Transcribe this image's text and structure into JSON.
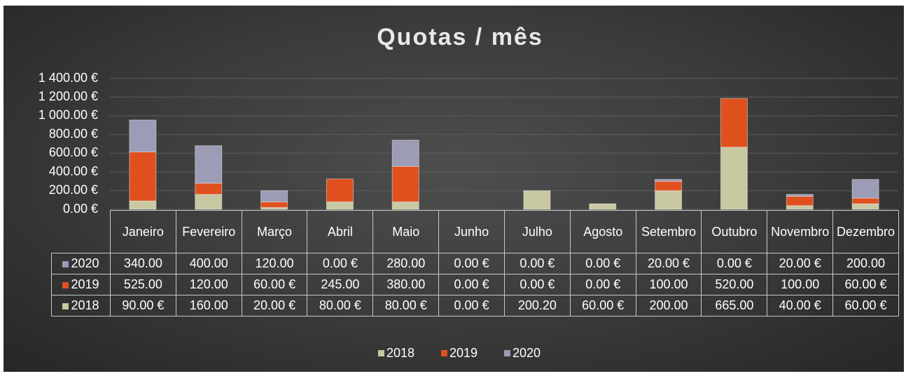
{
  "chart_data": {
    "type": "stacked_bar",
    "title": "Quotas / mês",
    "categories": [
      "Janeiro",
      "Fevereiro",
      "Março",
      "Abril",
      "Maio",
      "Junho",
      "Julho",
      "Agosto",
      "Setembro",
      "Outubro",
      "Novembro",
      "Dezembro"
    ],
    "series": [
      {
        "name": "2018",
        "color": "#c8c8a2",
        "values": [
          90,
          160,
          20,
          80,
          80,
          0,
          200.2,
          60,
          200,
          665,
          40,
          60
        ],
        "value_labels": [
          "90.00 €",
          "160.00",
          "20.00 €",
          "80.00 €",
          "80.00 €",
          "0.00 €",
          "200.20",
          "60.00 €",
          "200.00",
          "665.00",
          "40.00 €",
          "60.00 €"
        ]
      },
      {
        "name": "2019",
        "color": "#e0501e",
        "values": [
          525,
          120,
          60,
          245,
          380,
          0,
          0,
          0,
          100,
          520,
          100,
          60
        ],
        "value_labels": [
          "525.00",
          "120.00",
          "60.00 €",
          "245.00",
          "380.00",
          "0.00 €",
          "0.00 €",
          "0.00 €",
          "100.00",
          "520.00",
          "100.00",
          "60.00 €"
        ]
      },
      {
        "name": "2020",
        "color": "#9c9cb6",
        "values": [
          340,
          400,
          120,
          0,
          280,
          0,
          0,
          0,
          20,
          0,
          20,
          200
        ],
        "value_labels": [
          "340.00",
          "400.00",
          "120.00",
          "0.00 €",
          "280.00",
          "0.00 €",
          "0.00 €",
          "0.00 €",
          "20.00 €",
          "0.00 €",
          "20.00 €",
          "200.00"
        ]
      }
    ],
    "ylim": [
      0,
      1400
    ],
    "yticks": [
      {
        "value": 0,
        "label": "0.00 €"
      },
      {
        "value": 200,
        "label": "200.00 €"
      },
      {
        "value": 400,
        "label": "400.00 €"
      },
      {
        "value": 600,
        "label": "600.00 €"
      },
      {
        "value": 800,
        "label": "800.00 €"
      },
      {
        "value": 1000,
        "label": "1 000.00 €"
      },
      {
        "value": 1200,
        "label": "1 200.00 €"
      },
      {
        "value": 1400,
        "label": "1 400.00 €"
      }
    ],
    "grid": true,
    "legend": "bottom"
  }
}
